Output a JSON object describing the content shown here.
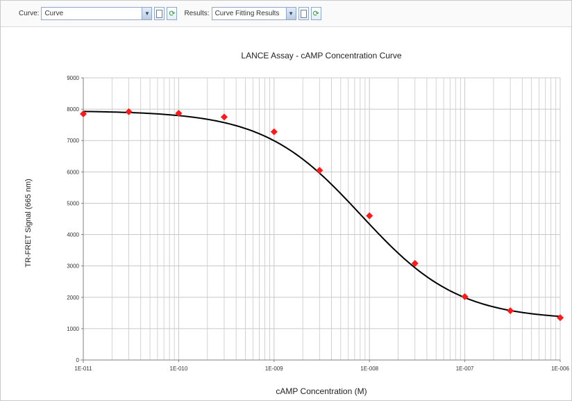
{
  "toolbar": {
    "curve_label": "Curve:",
    "curve_value": "Curve",
    "results_label": "Results:",
    "results_value": "Curve Fitting Results",
    "dropdown_arrow": "chevron-down-icon",
    "new_icon": "blank-document-icon",
    "refresh_icon": "refresh-icon"
  },
  "colors": {
    "curve": "#000000",
    "points": "#ff1a1a",
    "grid": "#c8c8c8",
    "axis": "#7f7f7f"
  },
  "chart_data": {
    "type": "scatter",
    "title": "LANCE Assay - cAMP Concentration Curve",
    "xlabel": "cAMP Concentration (M)",
    "ylabel": "TR-FRET Signal (665 nm)",
    "x_scale": "log",
    "xlim": [
      1e-11,
      1e-06
    ],
    "ylim": [
      0,
      9000
    ],
    "x_tick_labels": [
      "1E-011",
      "1E-010",
      "1E-009",
      "1E-008",
      "1E-007",
      "1E-006"
    ],
    "y_tick_labels": [
      "0",
      "1000",
      "2000",
      "3000",
      "4000",
      "5000",
      "6000",
      "7000",
      "8000",
      "9000"
    ],
    "grid": true,
    "legend": "none",
    "series": [
      {
        "type": "scatter",
        "marker": "diamond",
        "x": [
          1e-11,
          3e-11,
          1e-10,
          3e-10,
          1e-09,
          3e-09,
          1e-08,
          3e-08,
          1e-07,
          3e-07,
          1e-06
        ],
        "y": [
          7850,
          7920,
          7870,
          7750,
          7280,
          6050,
          4600,
          3080,
          2020,
          1570,
          1350
        ]
      },
      {
        "type": "line",
        "fit": "4-parameter logistic",
        "top": 7950,
        "bottom": 1280,
        "ec50": 8.2e-09,
        "hill": 0.85
      }
    ]
  }
}
